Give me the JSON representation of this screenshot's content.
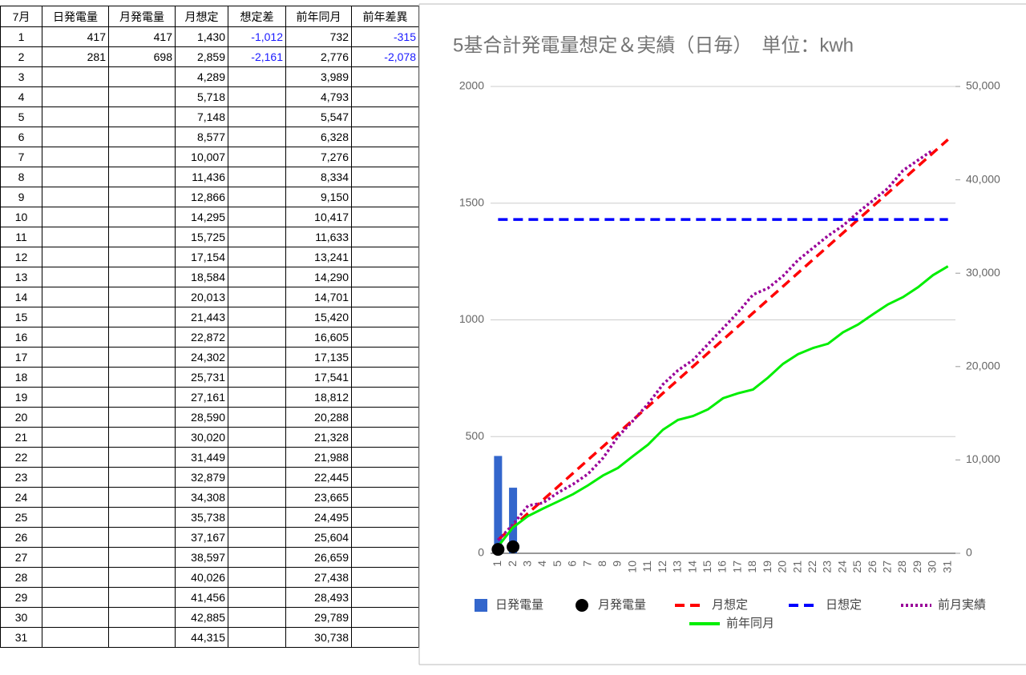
{
  "table": {
    "header": [
      "7月",
      "日発電量",
      "月発電量",
      "月想定",
      "想定差",
      "前年同月",
      "前年差異"
    ],
    "rows": [
      [
        "1",
        "417",
        "417",
        "1,430",
        "-1,012",
        "732",
        "-315"
      ],
      [
        "2",
        "281",
        "698",
        "2,859",
        "-2,161",
        "2,776",
        "-2,078"
      ],
      [
        "3",
        null,
        null,
        "4,289",
        null,
        "3,989",
        null
      ],
      [
        "4",
        null,
        null,
        "5,718",
        null,
        "4,793",
        null
      ],
      [
        "5",
        null,
        null,
        "7,148",
        null,
        "5,547",
        null
      ],
      [
        "6",
        null,
        null,
        "8,577",
        null,
        "6,328",
        null
      ],
      [
        "7",
        null,
        null,
        "10,007",
        null,
        "7,276",
        null
      ],
      [
        "8",
        null,
        null,
        "11,436",
        null,
        "8,334",
        null
      ],
      [
        "9",
        null,
        null,
        "12,866",
        null,
        "9,150",
        null
      ],
      [
        "10",
        null,
        null,
        "14,295",
        null,
        "10,417",
        null
      ],
      [
        "11",
        null,
        null,
        "15,725",
        null,
        "11,633",
        null
      ],
      [
        "12",
        null,
        null,
        "17,154",
        null,
        "13,241",
        null
      ],
      [
        "13",
        null,
        null,
        "18,584",
        null,
        "14,290",
        null
      ],
      [
        "14",
        null,
        null,
        "20,013",
        null,
        "14,701",
        null
      ],
      [
        "15",
        null,
        null,
        "21,443",
        null,
        "15,420",
        null
      ],
      [
        "16",
        null,
        null,
        "22,872",
        null,
        "16,605",
        null
      ],
      [
        "17",
        null,
        null,
        "24,302",
        null,
        "17,135",
        null
      ],
      [
        "18",
        null,
        null,
        "25,731",
        null,
        "17,541",
        null
      ],
      [
        "19",
        null,
        null,
        "27,161",
        null,
        "18,812",
        null
      ],
      [
        "20",
        null,
        null,
        "28,590",
        null,
        "20,288",
        null
      ],
      [
        "21",
        null,
        null,
        "30,020",
        null,
        "21,328",
        null
      ],
      [
        "22",
        null,
        null,
        "31,449",
        null,
        "21,988",
        null
      ],
      [
        "23",
        null,
        null,
        "32,879",
        null,
        "22,445",
        null
      ],
      [
        "24",
        null,
        null,
        "34,308",
        null,
        "23,665",
        null
      ],
      [
        "25",
        null,
        null,
        "35,738",
        null,
        "24,495",
        null
      ],
      [
        "26",
        null,
        null,
        "37,167",
        null,
        "25,604",
        null
      ],
      [
        "27",
        null,
        null,
        "38,597",
        null,
        "26,659",
        null
      ],
      [
        "28",
        null,
        null,
        "40,026",
        null,
        "27,438",
        null
      ],
      [
        "29",
        null,
        null,
        "41,456",
        null,
        "28,493",
        null
      ],
      [
        "30",
        null,
        null,
        "42,885",
        null,
        "29,789",
        null
      ],
      [
        "31",
        null,
        null,
        "44,315",
        null,
        "30,738",
        null
      ]
    ]
  },
  "chart_data": {
    "type": "combo",
    "title": "5基合計発電量想定＆実績（日毎）　単位：kwh",
    "categories": [
      "1",
      "2",
      "3",
      "4",
      "5",
      "6",
      "7",
      "8",
      "9",
      "10",
      "11",
      "12",
      "13",
      "14",
      "15",
      "16",
      "17",
      "18",
      "19",
      "20",
      "21",
      "22",
      "23",
      "24",
      "25",
      "26",
      "27",
      "28",
      "29",
      "30",
      "31"
    ],
    "ylim": [
      0,
      2000
    ],
    "yticks": [
      0,
      500,
      1000,
      1500,
      2000
    ],
    "y2lim": [
      0,
      50000
    ],
    "y2ticks": [
      0,
      {
        "value": 10000,
        "label": "10,000"
      },
      {
        "value": 20000,
        "label": "20,000"
      },
      {
        "value": 30000,
        "label": "30,000"
      },
      {
        "value": 40000,
        "label": "40,000"
      },
      {
        "value": 50000,
        "label": "50,000"
      }
    ],
    "grid": true,
    "legend": "bottom",
    "series": [
      {
        "name": "日発電量",
        "type": "bar",
        "color": "#3366cc",
        "values": [
          417,
          281,
          null,
          null,
          null,
          null,
          null,
          null,
          null,
          null,
          null,
          null,
          null,
          null,
          null,
          null,
          null,
          null,
          null,
          null,
          null,
          null,
          null,
          null,
          null,
          null,
          null,
          null,
          null,
          null,
          null
        ]
      },
      {
        "name": "月発電量",
        "type": "scatter",
        "axis": "y2",
        "color": "#000000",
        "values": [
          417,
          698,
          null,
          null,
          null,
          null,
          null,
          null,
          null,
          null,
          null,
          null,
          null,
          null,
          null,
          null,
          null,
          null,
          null,
          null,
          null,
          null,
          null,
          null,
          null,
          null,
          null,
          null,
          null,
          null,
          null
        ]
      },
      {
        "name": "月想定",
        "type": "line",
        "dash": "dashed",
        "axis": "y2",
        "color": "#ff0000",
        "values": [
          1430,
          2859,
          4289,
          5718,
          7148,
          8577,
          10007,
          11436,
          12866,
          14295,
          15725,
          17154,
          18584,
          20013,
          21443,
          22872,
          24302,
          25731,
          27161,
          28590,
          30020,
          31449,
          32879,
          34308,
          35738,
          37167,
          38597,
          40026,
          41456,
          42885,
          44315
        ]
      },
      {
        "name": "日想定",
        "type": "line",
        "dash": "dashed",
        "color": "#0000ff",
        "values": [
          1430,
          1430,
          1430,
          1430,
          1430,
          1430,
          1430,
          1430,
          1430,
          1430,
          1430,
          1430,
          1430,
          1430,
          1430,
          1430,
          1430,
          1430,
          1430,
          1430,
          1430,
          1430,
          1430,
          1430,
          1430,
          1430,
          1430,
          1430,
          1430,
          1430,
          1430
        ]
      },
      {
        "name": "前月実績",
        "type": "line",
        "dash": "dotted",
        "axis": "y2",
        "color": "#990099",
        "values": [
          1400,
          3100,
          5100,
          5400,
          6500,
          7400,
          8500,
          10200,
          12500,
          14200,
          16000,
          18100,
          19600,
          20700,
          22400,
          24100,
          25800,
          27700,
          28400,
          29700,
          31400,
          32700,
          34000,
          35100,
          36500,
          37800,
          39100,
          41000,
          42100,
          43200,
          null
        ]
      },
      {
        "name": "前年同月",
        "type": "line",
        "dash": "solid",
        "axis": "y2",
        "color": "#00ee00",
        "values": [
          732,
          2776,
          3989,
          4793,
          5547,
          6328,
          7276,
          8334,
          9150,
          10417,
          11633,
          13241,
          14290,
          14701,
          15420,
          16605,
          17135,
          17541,
          18812,
          20288,
          21328,
          21988,
          22445,
          23665,
          24495,
          25604,
          26659,
          27438,
          28493,
          29789,
          30738
        ]
      }
    ]
  }
}
